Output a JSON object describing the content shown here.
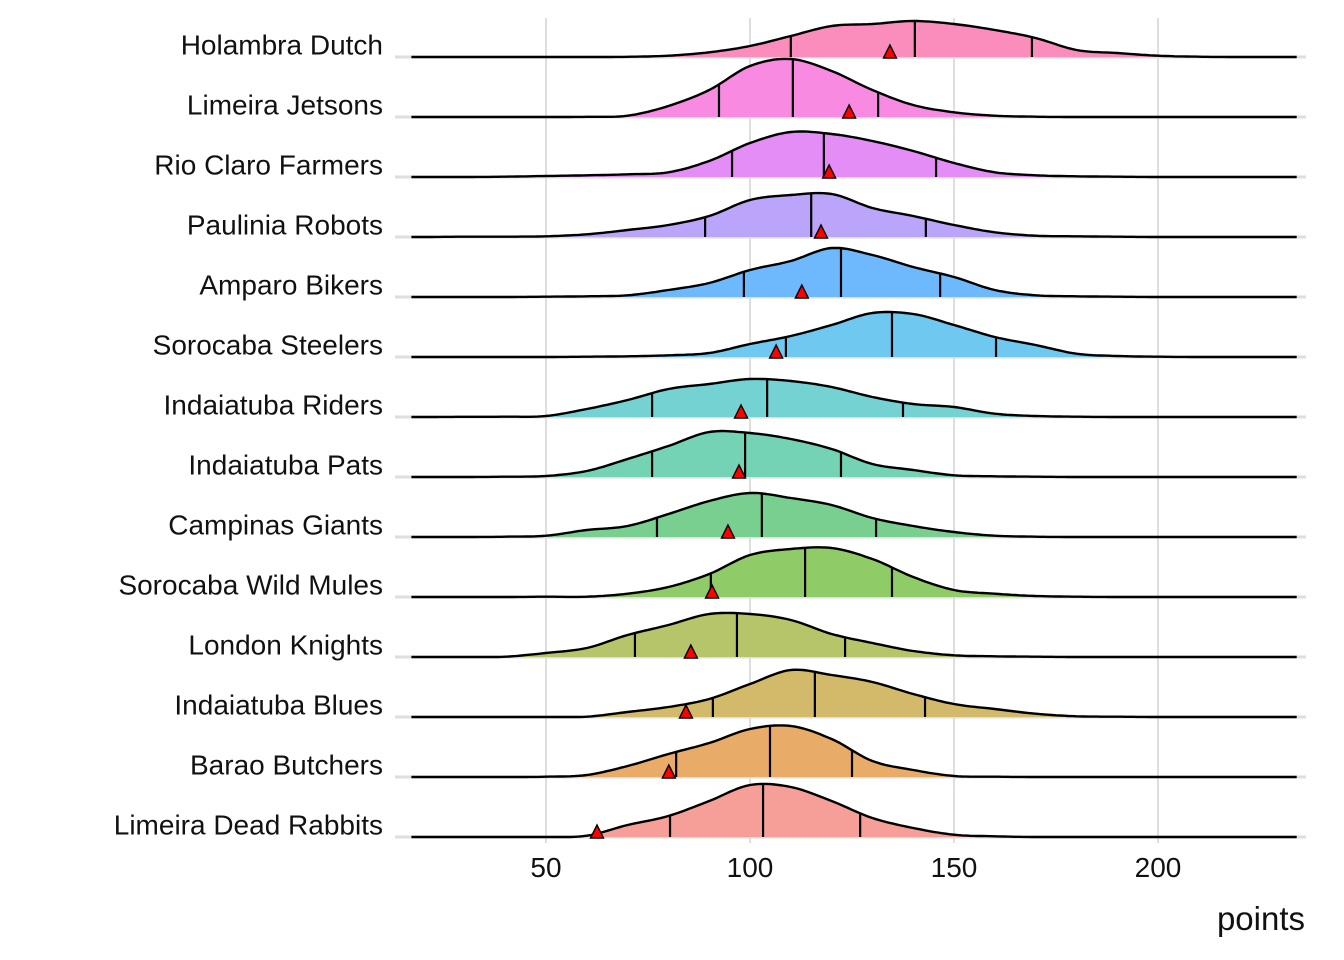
{
  "chart_data": {
    "type": "ridgeline",
    "title": "",
    "xlabel": "points",
    "ylabel": "",
    "xlim": [
      17,
      234
    ],
    "x_ticks": [
      50,
      100,
      150,
      200
    ],
    "x_tick_labels": [
      "50",
      "100",
      "150",
      "200"
    ],
    "grid": true,
    "density_x": [
      20,
      30,
      40,
      50,
      60,
      70,
      80,
      90,
      100,
      110,
      120,
      130,
      140,
      150,
      160,
      170,
      180,
      190,
      200,
      210,
      220,
      230
    ],
    "density_unit_note": "relative height, 60 = one row spacing",
    "series": [
      {
        "name": "Holambra Dutch",
        "color": "#FB8DBC",
        "quartiles": [
          110,
          140.4,
          169.1
        ],
        "marker": 134.3,
        "density": [
          0,
          0,
          0,
          0,
          0,
          0.2,
          1.3,
          4.7,
          11,
          21,
          31,
          33,
          36,
          33,
          27,
          19,
          7,
          4,
          1.3,
          0.3,
          0,
          0
        ]
      },
      {
        "name": "Limeira Jetsons",
        "color": "#F88AE2",
        "quartiles": [
          92.4,
          110.5,
          131.4
        ],
        "marker": 124.3,
        "density": [
          0,
          0,
          0,
          0,
          0.2,
          1.3,
          11,
          27,
          51,
          58,
          46,
          27,
          12,
          4.7,
          1.3,
          0.3,
          0,
          0,
          0,
          0,
          0,
          0
        ]
      },
      {
        "name": "Rio Claro Farmers",
        "color": "#E48DF7",
        "quartiles": [
          95.6,
          118.1,
          145.6
        ],
        "marker": 119.4,
        "density": [
          0,
          0,
          0.3,
          1,
          1.7,
          2.7,
          4.7,
          16,
          34,
          45,
          43,
          36,
          26,
          14,
          4.7,
          1.7,
          0.7,
          0.3,
          0,
          0,
          0,
          0
        ]
      },
      {
        "name": "Paulinia Robots",
        "color": "#BBA5FA",
        "quartiles": [
          89,
          115,
          143.1
        ],
        "marker": 117.4,
        "density": [
          0,
          0.3,
          0.3,
          0.7,
          2.7,
          7,
          12,
          21,
          37,
          42,
          43,
          29,
          21,
          12,
          4.7,
          1.3,
          0.7,
          0.3,
          0,
          0,
          0,
          0
        ]
      },
      {
        "name": "Amparo Bikers",
        "color": "#6EB9FD",
        "quartiles": [
          98.5,
          122.3,
          146.6
        ],
        "marker": 112.7,
        "density": [
          0,
          0,
          0,
          0.3,
          0.7,
          1.7,
          7,
          14,
          27,
          36,
          49,
          42,
          30,
          20,
          7,
          1.7,
          0.7,
          0.3,
          0,
          0,
          0,
          0
        ]
      },
      {
        "name": "Sorocaba Steelers",
        "color": "#6EC8EF",
        "quartiles": [
          108.8,
          134.8,
          160.3
        ],
        "marker": 106.4,
        "density": [
          0,
          0,
          0,
          0,
          0.3,
          0.7,
          1.7,
          4,
          13,
          21,
          32,
          44,
          43,
          32,
          20,
          12,
          3.3,
          1,
          0.3,
          0,
          0,
          0
        ]
      },
      {
        "name": "Indaiatuba Riders",
        "color": "#74D2D3",
        "quartiles": [
          76,
          104.2,
          137.5
        ],
        "marker": 97.8,
        "density": [
          0,
          0.2,
          0.3,
          1,
          8,
          17,
          28,
          33,
          38,
          36,
          30,
          20,
          13,
          10,
          3.3,
          1,
          0.3,
          0,
          0,
          0,
          0,
          0
        ]
      },
      {
        "name": "Indaiatuba Pats",
        "color": "#74D3B5",
        "quartiles": [
          76,
          98.8,
          122.3
        ],
        "marker": 97.3,
        "density": [
          0,
          0,
          0.3,
          1,
          6,
          18,
          31,
          45,
          44,
          38,
          28,
          13,
          7,
          1.7,
          0.7,
          0.3,
          0,
          0,
          0,
          0,
          0,
          0
        ]
      },
      {
        "name": "Campinas Giants",
        "color": "#78CF8F",
        "quartiles": [
          77.2,
          102.9,
          130.9
        ],
        "marker": 94.6,
        "density": [
          0,
          0,
          0.3,
          1.3,
          7,
          11,
          23,
          36,
          44,
          39,
          32,
          19,
          11,
          5,
          1.3,
          0.3,
          0,
          0,
          0,
          0,
          0,
          0
        ]
      },
      {
        "name": "Sorocaba Wild Mules",
        "color": "#8FCB66",
        "quartiles": [
          90.4,
          113.5,
          134.8
        ],
        "marker": 90.7,
        "density": [
          0,
          0,
          0,
          0.3,
          0.3,
          3.3,
          10,
          23,
          42,
          48,
          49,
          38,
          20,
          7,
          3.3,
          1,
          0.3,
          0,
          0,
          0,
          0,
          0
        ]
      },
      {
        "name": "London Knights",
        "color": "#B6C56A",
        "quartiles": [
          71.8,
          96.8,
          123.3
        ],
        "marker": 85.5,
        "density": [
          0,
          0,
          0.3,
          4,
          9,
          22,
          32,
          43,
          43,
          37,
          23,
          14,
          6,
          1.7,
          0.7,
          0.3,
          0,
          0,
          0,
          0,
          0,
          0
        ]
      },
      {
        "name": "Indaiatuba Blues",
        "color": "#D2BA6A",
        "quartiles": [
          90.9,
          115.9,
          142.9
        ],
        "marker": 84.3,
        "density": [
          0,
          0,
          0,
          0,
          0.3,
          5,
          10,
          18,
          33,
          47,
          42,
          35,
          23,
          13,
          8,
          3.3,
          0.7,
          0.3,
          0,
          0,
          0,
          0
        ]
      },
      {
        "name": "Barao Butchers",
        "color": "#E8AC68",
        "quartiles": [
          81.9,
          104.9,
          125
        ],
        "marker": 80.1,
        "density": [
          0,
          0,
          0,
          0.3,
          2,
          11,
          23,
          34,
          48,
          51,
          38,
          16,
          7,
          1,
          0.3,
          0,
          0,
          0,
          0,
          0,
          0,
          0
        ]
      },
      {
        "name": "Limeira Dead Rabbits",
        "color": "#F69F98",
        "quartiles": [
          80.4,
          103.2,
          127
        ],
        "marker": 62.5,
        "density": [
          0,
          0,
          0,
          0,
          1.3,
          12,
          21,
          36,
          52,
          50,
          36,
          19,
          9,
          2.3,
          0.7,
          0,
          0,
          0,
          0,
          0,
          0,
          0
        ]
      }
    ],
    "marker_color": "#FF0000",
    "legend": "none"
  }
}
